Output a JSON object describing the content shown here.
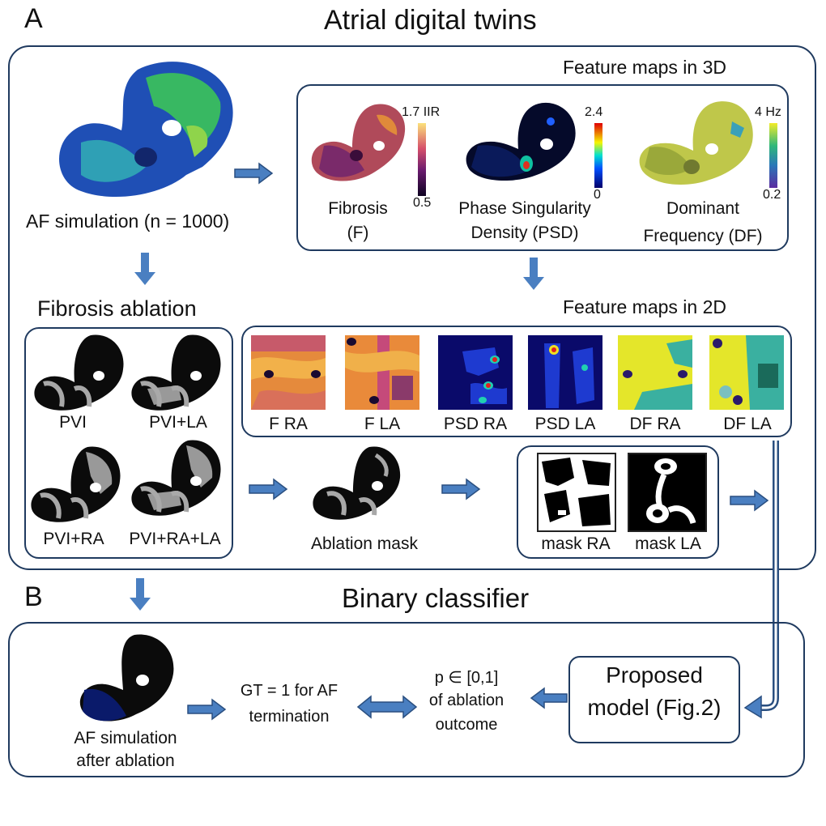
{
  "section_a": {
    "letter": "A",
    "title": "Atrial digital twins"
  },
  "section_b": {
    "letter": "B",
    "title": "Binary classifier"
  },
  "af_simulation": {
    "label": "AF simulation (n = 1000)"
  },
  "feature_3d": {
    "title": "Feature maps in 3D",
    "fibrosis": {
      "label_line1": "Fibrosis",
      "label_line2": "(F)",
      "scale_max": "1.7 IIR",
      "scale_min": "0.5"
    },
    "psd": {
      "label_line1": "Phase Singularity",
      "label_line2": "Density (PSD)",
      "scale_max": "2.4",
      "scale_min": "0"
    },
    "df": {
      "label_line1": "Dominant",
      "label_line2": "Frequency (DF)",
      "scale_max": "4 Hz",
      "scale_min": "0.2"
    }
  },
  "fibrosis_ablation": {
    "title": "Fibrosis ablation",
    "items": [
      "PVI",
      "PVI+LA",
      "PVI+RA",
      "PVI+RA+LA"
    ]
  },
  "feature_2d": {
    "title": "Feature maps in 2D",
    "items": [
      "F RA",
      "F LA",
      "PSD RA",
      "PSD LA",
      "DF RA",
      "DF LA"
    ]
  },
  "ablation_mask": {
    "label": "Ablation mask"
  },
  "masks": {
    "items": [
      "mask RA",
      "mask LA"
    ]
  },
  "classifier": {
    "after_label_line1": "AF simulation",
    "after_label_line2": "after ablation",
    "gt_line1": "GT = 1 for AF",
    "gt_line2": "termination",
    "p_line1": "p ∈ [0,1]",
    "p_line2": "of ablation",
    "p_line3": "outcome",
    "model_line1": "Proposed",
    "model_line2": "model (Fig.2)"
  },
  "colors": {
    "frame": "#1f3a5f",
    "arrow_fill": "#4a7fc1",
    "arrow_outline": "#2a4f80",
    "heart_black": "#0b0b0b",
    "fibrosis_gray": "#a8a8a8"
  }
}
